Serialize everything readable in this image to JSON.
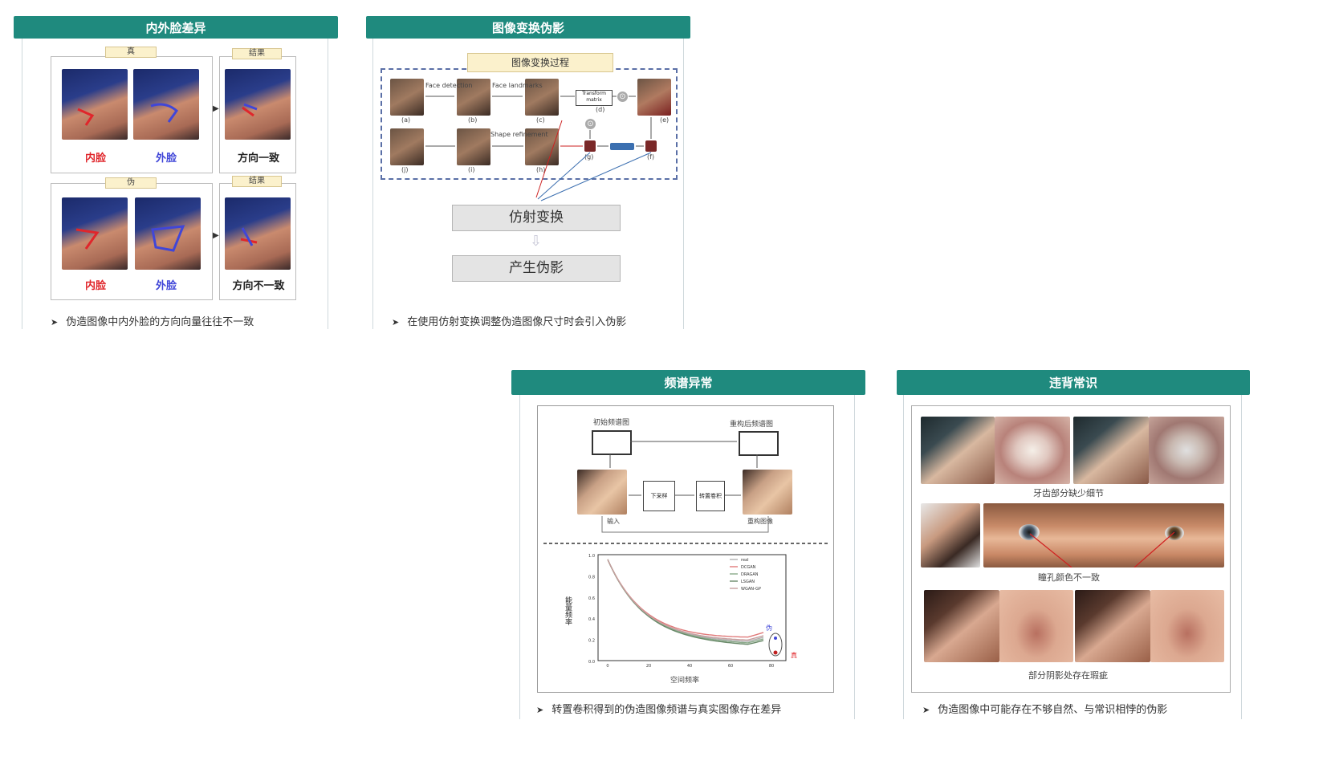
{
  "panel1": {
    "title": "内外脸差异",
    "real_tag": "真",
    "fake_tag": "伪",
    "result_tag": "结果",
    "inner_label": "内脸",
    "outer_label": "外脸",
    "consistent_label": "方向一致",
    "inconsistent_label": "方向不一致",
    "caption": "伪造图像中内外脸的方向向量往往不一致"
  },
  "panel2": {
    "title": "图像变换伪影",
    "process_label": "图像变换过程",
    "steps": {
      "face_detection": "Face detection",
      "face_landmarks": "Face landmarks",
      "transform_matrix": "Transform matrix",
      "shape_refinement": "Shape refinement"
    },
    "sub_labels": [
      "(a)",
      "(b)",
      "(c)",
      "(d)",
      "(e)",
      "(f)",
      "(g)",
      "(h)",
      "(i)",
      "(j)"
    ],
    "affine_label": "仿射变换",
    "artifact_label": "产生伪影",
    "caption": "在使用仿射变换调整伪造图像尺寸时会引入伪影"
  },
  "panel3": {
    "title": "频谱异常",
    "initial_spectrum": "初始频谱图",
    "reconstructed_spectrum": "重构后频谱图",
    "input_label": "输入",
    "output_label": "重构图像",
    "block1": "下采样",
    "block2": "转置卷积",
    "ylabel": "能量频率",
    "xlabel": "空间频率",
    "legend": [
      "real",
      "DCGAN",
      "DRAGAN",
      "LSGAN",
      "WGAN-GP"
    ],
    "fake_mark": "伪",
    "real_mark": "真",
    "yticks": [
      "1.0",
      "0.8",
      "0.6",
      "0.4",
      "0.2",
      "0.0"
    ],
    "xticks": [
      "0",
      "20",
      "40",
      "60",
      "80"
    ],
    "caption": "转置卷积得到的伪造图像频谱与真实图像存在差异"
  },
  "panel4": {
    "title": "违背常识",
    "row1_label": "牙齿部分缺少细节",
    "row2_label": "瞳孔颜色不一致",
    "row3_label": "部分阴影处存在瑕疵",
    "caption": "伪造图像中可能存在不够自然、与常识相悖的伪影"
  },
  "colors": {
    "header": "#1f8a7e",
    "inner": "#e0262b",
    "outer": "#4046d8"
  }
}
